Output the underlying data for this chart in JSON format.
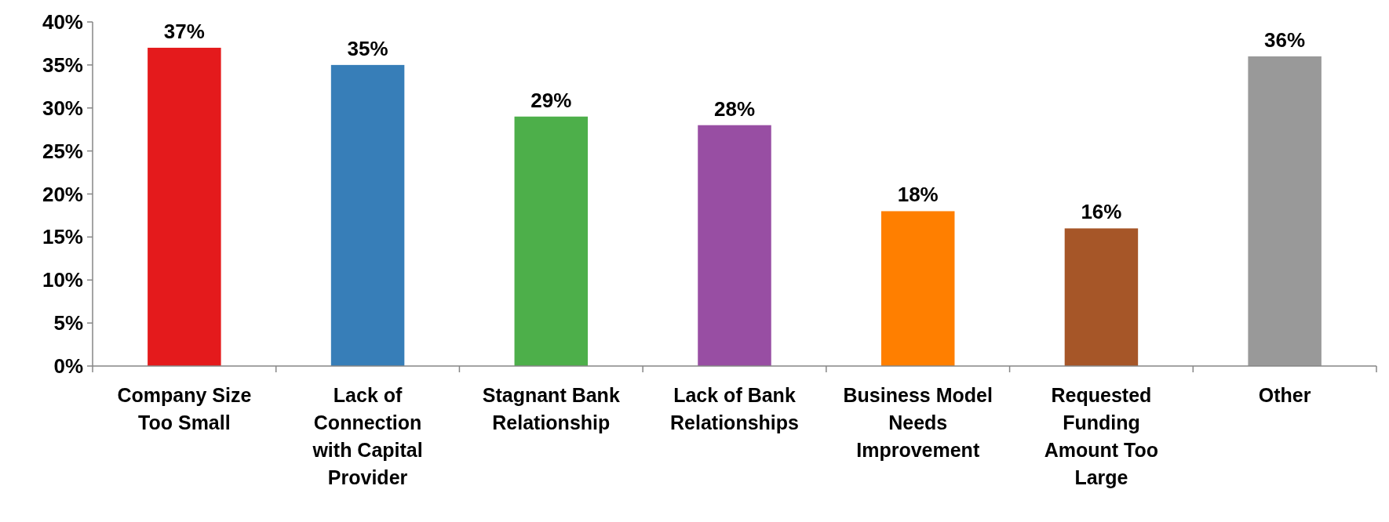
{
  "chart_data": {
    "type": "bar",
    "categories": [
      "Company Size Too Small",
      "Lack of Connection with Capital Provider",
      "Stagnant Bank Relationship",
      "Lack of Bank Relationships",
      "Business Model Needs Improvement",
      "Requested Funding Amount Too Large",
      "Other"
    ],
    "values": [
      37,
      35,
      29,
      28,
      18,
      16,
      36
    ],
    "colors": [
      "#e41a1c",
      "#377eb8",
      "#4daf4a",
      "#984ea3",
      "#ff7f00",
      "#a65628",
      "#999999"
    ],
    "value_labels": [
      "37%",
      "35%",
      "29%",
      "28%",
      "18%",
      "16%",
      "36%"
    ],
    "ylim": [
      0,
      40
    ],
    "yticks": [
      {
        "value": 0,
        "label": "0%"
      },
      {
        "value": 5,
        "label": "5%"
      },
      {
        "value": 10,
        "label": "10%"
      },
      {
        "value": 15,
        "label": "15%"
      },
      {
        "value": 20,
        "label": "20%"
      },
      {
        "value": 25,
        "label": "25%"
      },
      {
        "value": 30,
        "label": "30%"
      },
      {
        "value": 35,
        "label": "35%"
      },
      {
        "value": 40,
        "label": "40%"
      }
    ],
    "grid": false
  }
}
